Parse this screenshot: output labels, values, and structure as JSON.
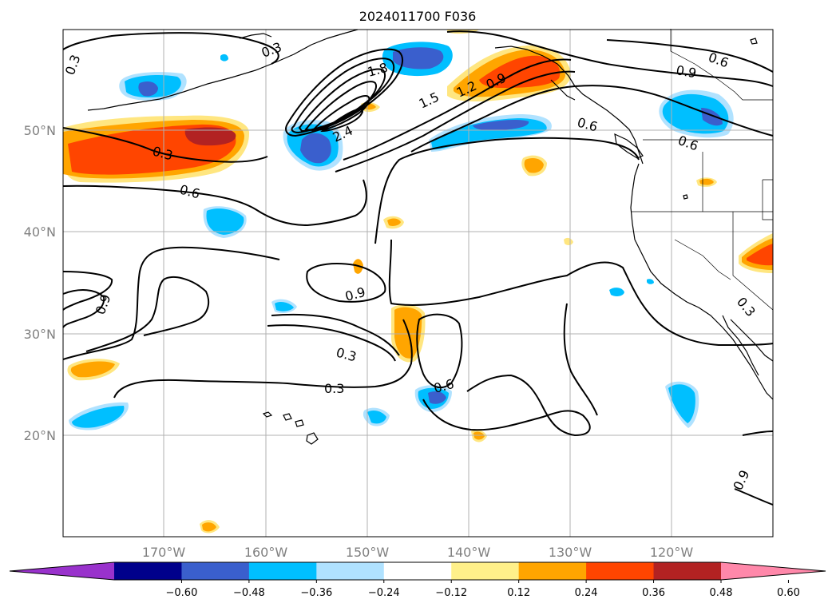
{
  "title": "2024011700 F036",
  "lat_labels": [
    "50°N",
    "40°N",
    "30°N",
    "20°N"
  ],
  "lon_labels": [
    "170°W",
    "160°W",
    "150°W",
    "140°W",
    "130°W",
    "120°W"
  ],
  "colorbar": {
    "ticks": [
      "−0.60",
      "−0.48",
      "−0.36",
      "−0.24",
      "−0.12",
      "0.12",
      "0.24",
      "0.36",
      "0.48",
      "0.60"
    ],
    "colors": [
      "#9932cc",
      "#00008b",
      "#3a5fcd",
      "#00bfff",
      "#b0e2ff",
      "#ffffff",
      "#fff08a",
      "#ffa500",
      "#ff4500",
      "#b22222",
      "#ff88aa"
    ]
  },
  "contour_labels": [
    "0.3",
    "0.3",
    "0.6",
    "0.9",
    "0.3",
    "0.3",
    "0.6",
    "0.9",
    "1.8",
    "1.5",
    "1.2",
    "0.9",
    "2.4",
    "0.6",
    "0.9",
    "0.6",
    "0.3",
    "0.3",
    "0.9",
    "0.6"
  ]
}
